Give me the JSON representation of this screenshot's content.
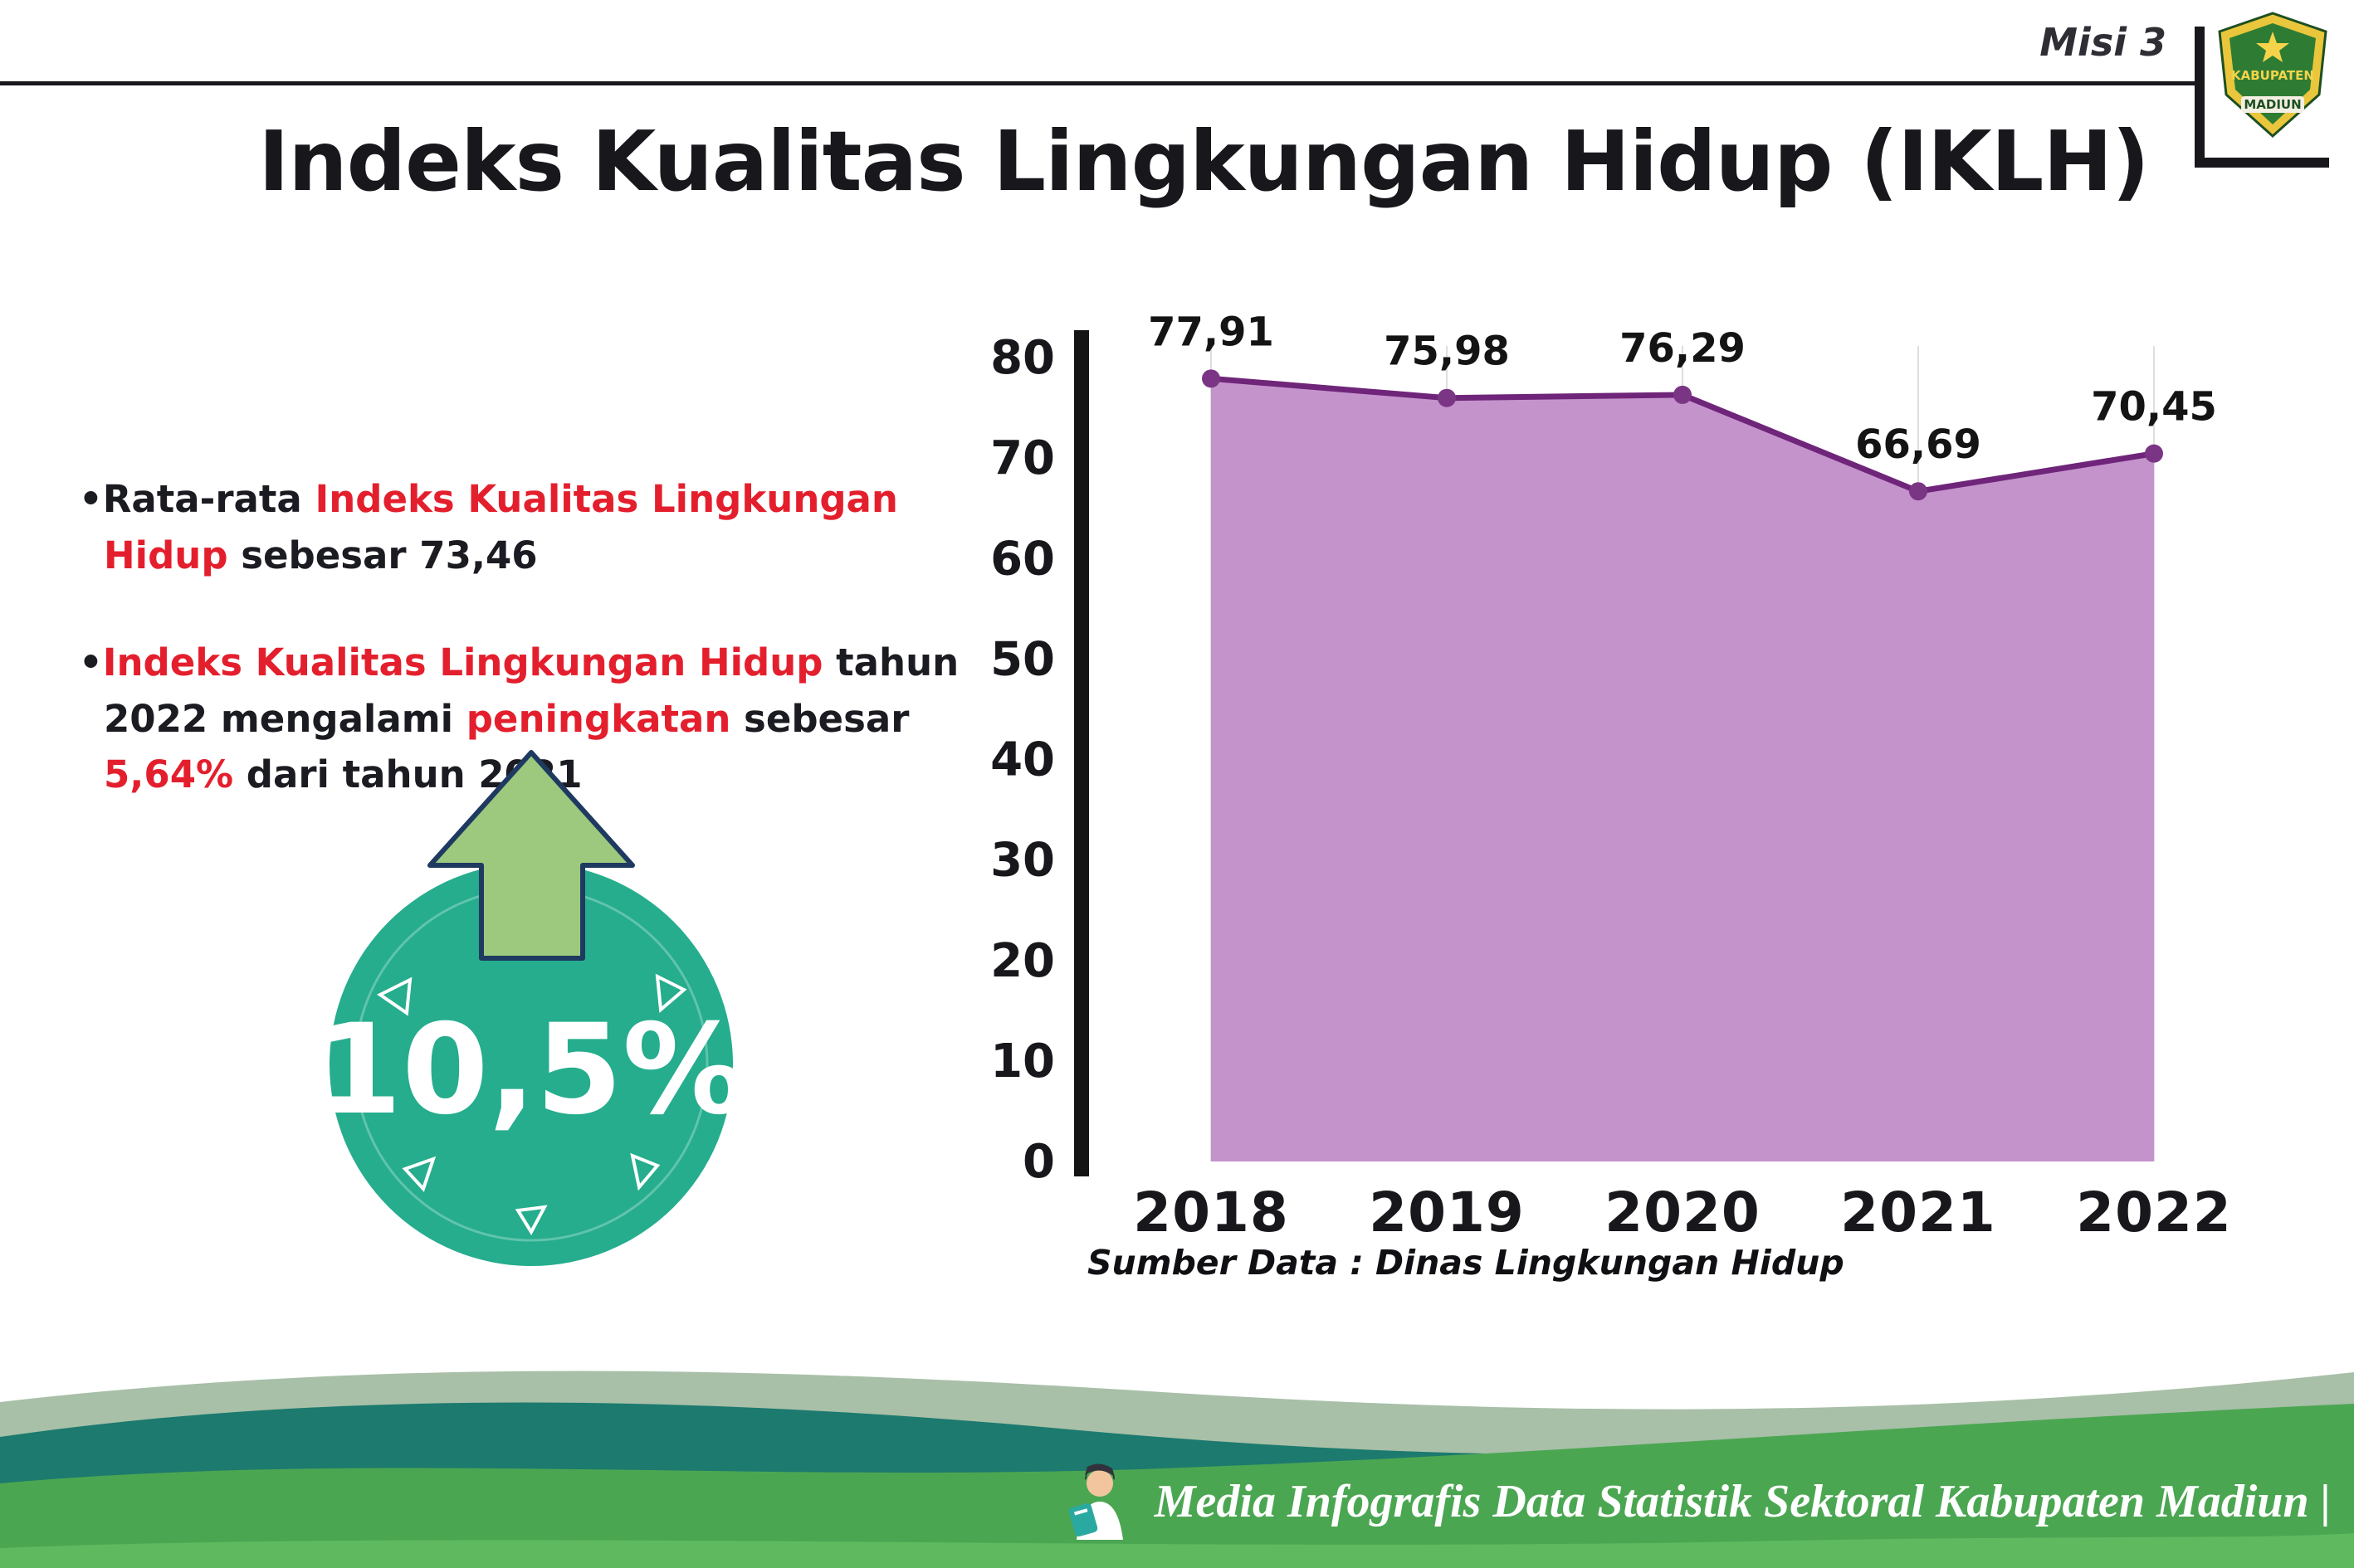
{
  "header": {
    "misi_label": "Misi 3",
    "title": "Indeks Kualitas Lingkungan Hidup (IKLH)",
    "logo": {
      "top_text": "KABUPATEN",
      "bottom_text": "MADIUN"
    }
  },
  "bullet_marker": "•",
  "bullets": [
    {
      "segments": [
        {
          "text": "Rata-rata ",
          "red": false
        },
        {
          "text": "Indeks Kualitas Lingkungan Hidup",
          "red": true
        },
        {
          "text": " sebesar 73,46",
          "red": false
        }
      ]
    },
    {
      "segments": [
        {
          "text": "Indeks Kualitas Lingkungan Hidup",
          "red": true
        },
        {
          "text": " tahun 2022 mengalami ",
          "red": false
        },
        {
          "text": "peningkatan",
          "red": true
        },
        {
          "text": " sebesar ",
          "red": false
        },
        {
          "text": "5,64%",
          "red": true
        },
        {
          "text": " dari tahun 2021",
          "red": false
        }
      ]
    }
  ],
  "badge": {
    "value": "10,5%",
    "circle_color": "#25ad8d",
    "arrow_fill": "#9cc97e",
    "arrow_outline": "#1f3a60"
  },
  "chart_data": {
    "type": "area",
    "title": "Indeks Kualitas Lingkungan Hidup (IKLH)",
    "categories": [
      "2018",
      "2019",
      "2020",
      "2021",
      "2022"
    ],
    "values": [
      77.91,
      75.98,
      76.29,
      66.69,
      70.45
    ],
    "value_labels": [
      "77,91",
      "75,98",
      "76,29",
      "66,69",
      "70,45"
    ],
    "ylim": [
      0,
      80
    ],
    "yticks": [
      0,
      10,
      20,
      30,
      40,
      50,
      60,
      70,
      80
    ],
    "grid": "vertical-light",
    "legend": "none",
    "fill_color": "#c493cc",
    "line_color": "#6f2579",
    "marker_color": "#7b3585",
    "source": "Sumber Data : Dinas Lingkungan Hidup"
  },
  "footer": {
    "text": "Media Infografis Data Statistik Sektoral Kabupaten Madiun |"
  },
  "accent_colors": {
    "highlight_red": "#e41f2d",
    "footer_green": "#4ba652",
    "footer_teal": "#1c7a6e",
    "footer_sage": "#a8bfa8"
  }
}
